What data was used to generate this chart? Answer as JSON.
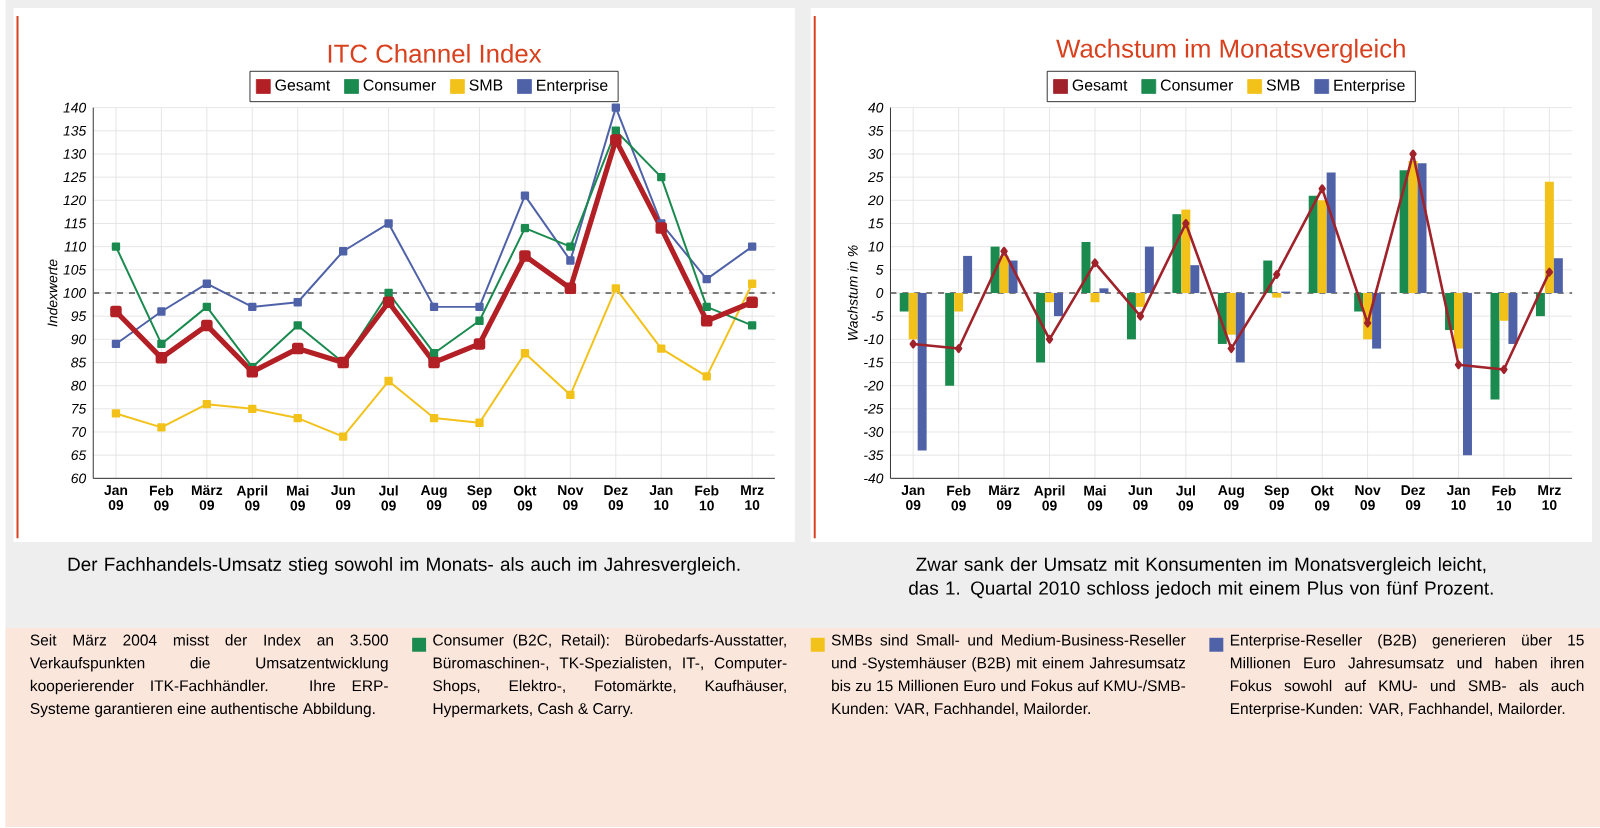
{
  "chart_data": [
    {
      "type": "line",
      "title": "ITC Channel Index",
      "ylabel": "Indexwerte",
      "categories": [
        "Jan 09",
        "Feb 09",
        "März 09",
        "April 09",
        "Mai 09",
        "Jun 09",
        "Jul 09",
        "Aug 09",
        "Sep 09",
        "Okt 09",
        "Nov 09",
        "Dez 09",
        "Jan 10",
        "Feb 10",
        "Mrz 10"
      ],
      "series": [
        {
          "name": "Gesamt",
          "color": "#b22025",
          "values": [
            96,
            86,
            93,
            83,
            88,
            85,
            98,
            85,
            89,
            108,
            101,
            133,
            114,
            94,
            98
          ]
        },
        {
          "name": "Consumer",
          "color": "#1a8a4f",
          "values": [
            110,
            89,
            97,
            84,
            93,
            85,
            100,
            87,
            94,
            114,
            110,
            135,
            125,
            97,
            93
          ]
        },
        {
          "name": "SMB",
          "color": "#f2c21b",
          "values": [
            74,
            71,
            76,
            75,
            73,
            69,
            81,
            73,
            72,
            87,
            78,
            101,
            88,
            82,
            102
          ]
        },
        {
          "name": "Enterprise",
          "color": "#4f62a8",
          "values": [
            89,
            96,
            102,
            97,
            98,
            109,
            115,
            97,
            97,
            121,
            107,
            140,
            115,
            103,
            110
          ]
        }
      ],
      "ylim": [
        60,
        140
      ],
      "yticks": [
        60,
        65,
        70,
        75,
        80,
        85,
        90,
        95,
        100,
        105,
        110,
        115,
        120,
        125,
        130,
        135,
        140
      ],
      "grid": true,
      "legend": "top",
      "marker": "square",
      "ref_lines": [
        {
          "axis": "y",
          "value": 100,
          "color": "#555555",
          "line_style": "dashed"
        }
      ],
      "annotations": [
        "Der Fachhandels-Umsatz stieg sowohl im Monats- als auch im Jahresvergleich.",
        "Seit März 2004 misst der Index an 3.500 Verkaufspunkten die Umsatzentwicklung kooperierender ITK-Fachhändler. Ihre ERP-Systeme garantieren eine authentische Abbildung.",
        "Consumer (B2C, Retail): Bürobedarfs-Ausstatter, Büromaschinen-, TK-Spezialisten, IT-, Computer-Shops, Elektro-, Fotomärkte, Kaufhäuser, Hypermarkets, Cash & Carry."
      ]
    },
    {
      "type": "bar",
      "title": "Wachstum im Monatsvergleich",
      "ylabel": "Wachstum in %",
      "categories": [
        "Jan 09",
        "Feb 09",
        "März 09",
        "April 09",
        "Mai 09",
        "Jun 09",
        "Jul 09",
        "Aug 09",
        "Sep 09",
        "Okt 09",
        "Nov 09",
        "Dez 09",
        "Jan 10",
        "Feb 10",
        "Mrz 10"
      ],
      "series": [
        {
          "name": "Gesamt",
          "type": "line",
          "color": "#a0222a",
          "values": [
            -11,
            -12,
            9,
            -10,
            6.5,
            -5,
            15,
            -12,
            4,
            22.5,
            -6.5,
            30,
            -15.5,
            -16.5,
            4.5
          ]
        },
        {
          "name": "Consumer",
          "color": "#1a8a4f",
          "values": [
            -4,
            -20,
            10,
            -15,
            11,
            -10,
            17,
            -11,
            7,
            21,
            -4,
            26.5,
            -8,
            -23,
            -5
          ]
        },
        {
          "name": "SMB",
          "color": "#f2c21b",
          "values": [
            -10,
            -4,
            8,
            -2,
            -2,
            -3,
            18,
            -9,
            -1,
            20,
            -10,
            28.5,
            -12,
            -6,
            24
          ]
        },
        {
          "name": "Enterprise",
          "color": "#4f62a8",
          "values": [
            -34,
            8,
            7,
            -5,
            1,
            10,
            6,
            -15,
            0.3,
            26,
            -12,
            28,
            -35,
            -11,
            7.5
          ]
        }
      ],
      "ylim": [
        -40,
        40
      ],
      "yticks": [
        -40,
        -35,
        -30,
        -25,
        -20,
        -15,
        -10,
        -5,
        0,
        5,
        10,
        15,
        20,
        25,
        30,
        35,
        40
      ],
      "grid": true,
      "legend": "top",
      "marker": "diamond",
      "ref_lines": [
        {
          "axis": "y",
          "value": 0,
          "color": "#555555",
          "line_style": "dashed"
        }
      ],
      "annotations": [
        "Zwar sank der Umsatz mit Konsumenten im Monatsvergleich leicht, das 1. Quartal 2010 schloss jedoch mit einem Plus von fünf Prozent.",
        "SMBs sind Small- und Medium-Business-Reseller und -Systemhäuser (B2B) mit einem Jahresumsatz bis zu 15 Millionen Euro und Fokus auf KMU-/SMB-Kunden: VAR, Fachhandel, Mailorder.",
        "Enterprise-Reseller (B2B) generieren über 15 Millionen Euro Jahresumsatz und haben ihren Fokus sowohl auf KMU- und SMB- als auch Enterprise-Kunden: VAR, Fachhandel, Mailorder."
      ]
    }
  ]
}
